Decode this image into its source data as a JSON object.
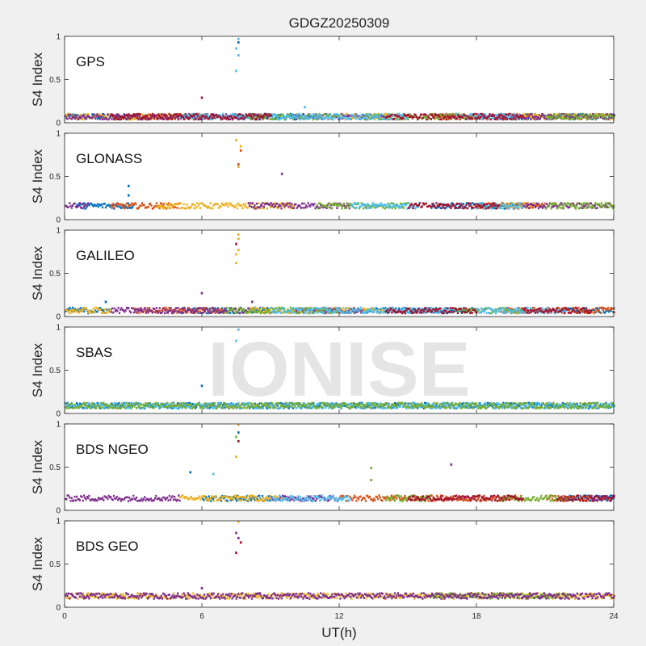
{
  "figure": {
    "title": "GDGZ20250309",
    "xlabel": "UT(h)",
    "watermark": "IONISE",
    "xlim": [
      0,
      24
    ],
    "xticks": [
      "0",
      "6",
      "12",
      "18",
      "24"
    ]
  },
  "chart_data": [
    {
      "type": "scatter",
      "panel_label": "GPS",
      "ylabel": "S4 Index",
      "ylim": [
        0,
        1
      ],
      "yticks": [
        "0",
        "0.5",
        "1"
      ],
      "baseline": 0.07,
      "series": [
        {
          "color": "#0072bd",
          "segments": [
            [
              0,
              3
            ],
            [
              7.5,
              11
            ],
            [
              19,
              24
            ]
          ]
        },
        {
          "color": "#d95319",
          "segments": [
            [
              3,
              6
            ],
            [
              16,
              21
            ]
          ]
        },
        {
          "color": "#edb120",
          "segments": [
            [
              0,
              5
            ],
            [
              12,
              15
            ],
            [
              20,
              24
            ]
          ]
        },
        {
          "color": "#7e2f8e",
          "segments": [
            [
              0,
              9
            ],
            [
              10,
              14
            ],
            [
              18,
              24
            ]
          ]
        },
        {
          "color": "#77ac30",
          "segments": [
            [
              8,
              12
            ],
            [
              13,
              18
            ],
            [
              21,
              24
            ]
          ]
        },
        {
          "color": "#4dbeee",
          "segments": [
            [
              5,
              8
            ],
            [
              9,
              15
            ],
            [
              17,
              20
            ]
          ]
        },
        {
          "color": "#a2142f",
          "segments": [
            [
              2,
              9
            ],
            [
              14,
              20
            ]
          ]
        }
      ],
      "spikes": [
        {
          "x": 7.6,
          "y": 0.97,
          "color": "#4dbeee"
        },
        {
          "x": 7.6,
          "y": 0.93,
          "color": "#0072bd"
        },
        {
          "x": 7.5,
          "y": 0.86,
          "color": "#4dbeee"
        },
        {
          "x": 7.6,
          "y": 0.78,
          "color": "#4dbeee"
        },
        {
          "x": 7.5,
          "y": 0.6,
          "color": "#4dbeee"
        },
        {
          "x": 6.0,
          "y": 0.29,
          "color": "#a2142f"
        },
        {
          "x": 10.5,
          "y": 0.18,
          "color": "#4dbeee"
        }
      ]
    },
    {
      "type": "scatter",
      "panel_label": "GLONASS",
      "ylabel": "S4 Index",
      "ylim": [
        0,
        1
      ],
      "yticks": [
        "0",
        "0.5",
        "1"
      ],
      "baseline": 0.16,
      "series": [
        {
          "color": "#0072bd",
          "segments": [
            [
              0.5,
              3
            ],
            [
              16,
              20
            ]
          ]
        },
        {
          "color": "#d95319",
          "segments": [
            [
              2,
              5
            ],
            [
              18,
              21
            ]
          ]
        },
        {
          "color": "#edb120",
          "segments": [
            [
              4,
              10
            ],
            [
              19,
              20.5
            ]
          ]
        },
        {
          "color": "#7e2f8e",
          "segments": [
            [
              0,
              1
            ],
            [
              8,
              12.5
            ],
            [
              20,
              24
            ]
          ]
        },
        {
          "color": "#77ac30",
          "segments": [
            [
              11,
              15
            ],
            [
              21,
              24
            ]
          ]
        },
        {
          "color": "#4dbeee",
          "segments": [
            [
              12.5,
              15.5
            ],
            [
              18,
              20
            ]
          ]
        },
        {
          "color": "#a2142f",
          "segments": [
            [
              15,
              19
            ]
          ]
        }
      ],
      "spikes": [
        {
          "x": 7.5,
          "y": 0.92,
          "color": "#edb120"
        },
        {
          "x": 7.7,
          "y": 0.85,
          "color": "#edb120"
        },
        {
          "x": 7.7,
          "y": 0.8,
          "color": "#d95319"
        },
        {
          "x": 7.6,
          "y": 0.64,
          "color": "#d95319"
        },
        {
          "x": 7.6,
          "y": 0.61,
          "color": "#edb120"
        },
        {
          "x": 9.5,
          "y": 0.53,
          "color": "#7e2f8e"
        },
        {
          "x": 2.8,
          "y": 0.39,
          "color": "#0072bd"
        },
        {
          "x": 2.8,
          "y": 0.28,
          "color": "#0072bd"
        }
      ]
    },
    {
      "type": "scatter",
      "panel_label": "GALILEO",
      "ylabel": "S4 Index",
      "ylim": [
        0,
        1
      ],
      "yticks": [
        "0",
        "0.5",
        "1"
      ],
      "baseline": 0.07,
      "series": [
        {
          "color": "#0072bd",
          "segments": [
            [
              0,
              2
            ],
            [
              5,
              9
            ],
            [
              13,
              18
            ],
            [
              22,
              24
            ]
          ]
        },
        {
          "color": "#d95319",
          "segments": [
            [
              3,
              7
            ],
            [
              19,
              24
            ]
          ]
        },
        {
          "color": "#edb120",
          "segments": [
            [
              0,
              2
            ],
            [
              8,
              14
            ]
          ]
        },
        {
          "color": "#7e2f8e",
          "segments": [
            [
              2,
              8
            ],
            [
              10,
              13
            ]
          ]
        },
        {
          "color": "#77ac30",
          "segments": [
            [
              7,
              12
            ],
            [
              17,
              20
            ]
          ]
        },
        {
          "color": "#4dbeee",
          "segments": [
            [
              9,
              17
            ],
            [
              18,
              22
            ]
          ]
        },
        {
          "color": "#a2142f",
          "segments": [
            [
              14,
              18
            ],
            [
              20,
              23
            ]
          ]
        }
      ],
      "spikes": [
        {
          "x": 7.6,
          "y": 0.95,
          "color": "#edb120"
        },
        {
          "x": 7.6,
          "y": 0.9,
          "color": "#edb120"
        },
        {
          "x": 7.5,
          "y": 0.84,
          "color": "#a2142f"
        },
        {
          "x": 7.6,
          "y": 0.77,
          "color": "#edb120"
        },
        {
          "x": 7.5,
          "y": 0.72,
          "color": "#edb120"
        },
        {
          "x": 7.5,
          "y": 0.62,
          "color": "#edb120"
        },
        {
          "x": 6.0,
          "y": 0.27,
          "color": "#7e2f8e"
        },
        {
          "x": 8.2,
          "y": 0.17,
          "color": "#7e2f8e"
        },
        {
          "x": 1.8,
          "y": 0.17,
          "color": "#0072bd"
        }
      ]
    },
    {
      "type": "scatter",
      "panel_label": "SBAS",
      "ylabel": "S4 Index",
      "ylim": [
        0,
        1
      ],
      "yticks": [
        "0",
        "0.5",
        "1"
      ],
      "baseline": 0.09,
      "series": [
        {
          "color": "#0072bd",
          "segments": [
            [
              0,
              24
            ]
          ]
        },
        {
          "color": "#4dbeee",
          "segments": [
            [
              0,
              24
            ]
          ]
        },
        {
          "color": "#77ac30",
          "segments": [
            [
              0,
              24
            ]
          ]
        }
      ],
      "spikes": [
        {
          "x": 7.6,
          "y": 0.97,
          "color": "#4dbeee"
        },
        {
          "x": 7.5,
          "y": 0.84,
          "color": "#4dbeee"
        },
        {
          "x": 6.0,
          "y": 0.32,
          "color": "#0072bd"
        }
      ]
    },
    {
      "type": "scatter",
      "panel_label": "BDS NGEO",
      "ylabel": "S4 Index",
      "ylim": [
        0,
        1
      ],
      "yticks": [
        "0",
        "0.5",
        "1"
      ],
      "baseline": 0.14,
      "series": [
        {
          "color": "#0072bd",
          "segments": [
            [
              6,
              9
            ],
            [
              22,
              24
            ]
          ]
        },
        {
          "color": "#d95319",
          "segments": [
            [
              12,
              20
            ],
            [
              21,
              23
            ]
          ]
        },
        {
          "color": "#edb120",
          "segments": [
            [
              5,
              9.5
            ]
          ]
        },
        {
          "color": "#7e2f8e",
          "segments": [
            [
              0,
              5
            ],
            [
              9,
              12
            ],
            [
              23,
              24
            ]
          ]
        },
        {
          "color": "#77ac30",
          "segments": [
            [
              14,
              16
            ],
            [
              19,
              22
            ]
          ]
        },
        {
          "color": "#4dbeee",
          "segments": [
            [
              9,
              12.5
            ]
          ]
        },
        {
          "color": "#a2142f",
          "segments": [
            [
              15,
              20
            ],
            [
              21.5,
              24
            ]
          ]
        }
      ],
      "spikes": [
        {
          "x": 7.6,
          "y": 0.99,
          "color": "#edb120"
        },
        {
          "x": 7.6,
          "y": 0.9,
          "color": "#0072bd"
        },
        {
          "x": 7.5,
          "y": 0.85,
          "color": "#77ac30"
        },
        {
          "x": 7.6,
          "y": 0.8,
          "color": "#a2142f"
        },
        {
          "x": 7.5,
          "y": 0.62,
          "color": "#edb120"
        },
        {
          "x": 16.9,
          "y": 0.53,
          "color": "#7e2f8e"
        },
        {
          "x": 13.4,
          "y": 0.49,
          "color": "#77ac30"
        },
        {
          "x": 5.5,
          "y": 0.44,
          "color": "#0072bd"
        },
        {
          "x": 6.5,
          "y": 0.42,
          "color": "#4dbeee"
        },
        {
          "x": 13.4,
          "y": 0.35,
          "color": "#77ac30"
        }
      ]
    },
    {
      "type": "scatter",
      "panel_label": "BDS GEO",
      "ylabel": "S4 Index",
      "ylim": [
        0,
        1
      ],
      "yticks": [
        "0",
        "0.5",
        "1"
      ],
      "baseline": 0.13,
      "series": [
        {
          "color": "#edb120",
          "segments": [
            [
              0,
              24
            ]
          ]
        },
        {
          "color": "#77ac30",
          "segments": [
            [
              16,
              22
            ]
          ]
        },
        {
          "color": "#7e2f8e",
          "segments": [
            [
              0,
              24
            ]
          ]
        }
      ],
      "spikes": [
        {
          "x": 7.6,
          "y": 0.99,
          "color": "#edb120"
        },
        {
          "x": 7.5,
          "y": 0.86,
          "color": "#7e2f8e"
        },
        {
          "x": 7.6,
          "y": 0.8,
          "color": "#7e2f8e"
        },
        {
          "x": 7.7,
          "y": 0.75,
          "color": "#a2142f"
        },
        {
          "x": 7.5,
          "y": 0.63,
          "color": "#a2142f"
        },
        {
          "x": 6.0,
          "y": 0.22,
          "color": "#7e2f8e"
        }
      ]
    }
  ]
}
